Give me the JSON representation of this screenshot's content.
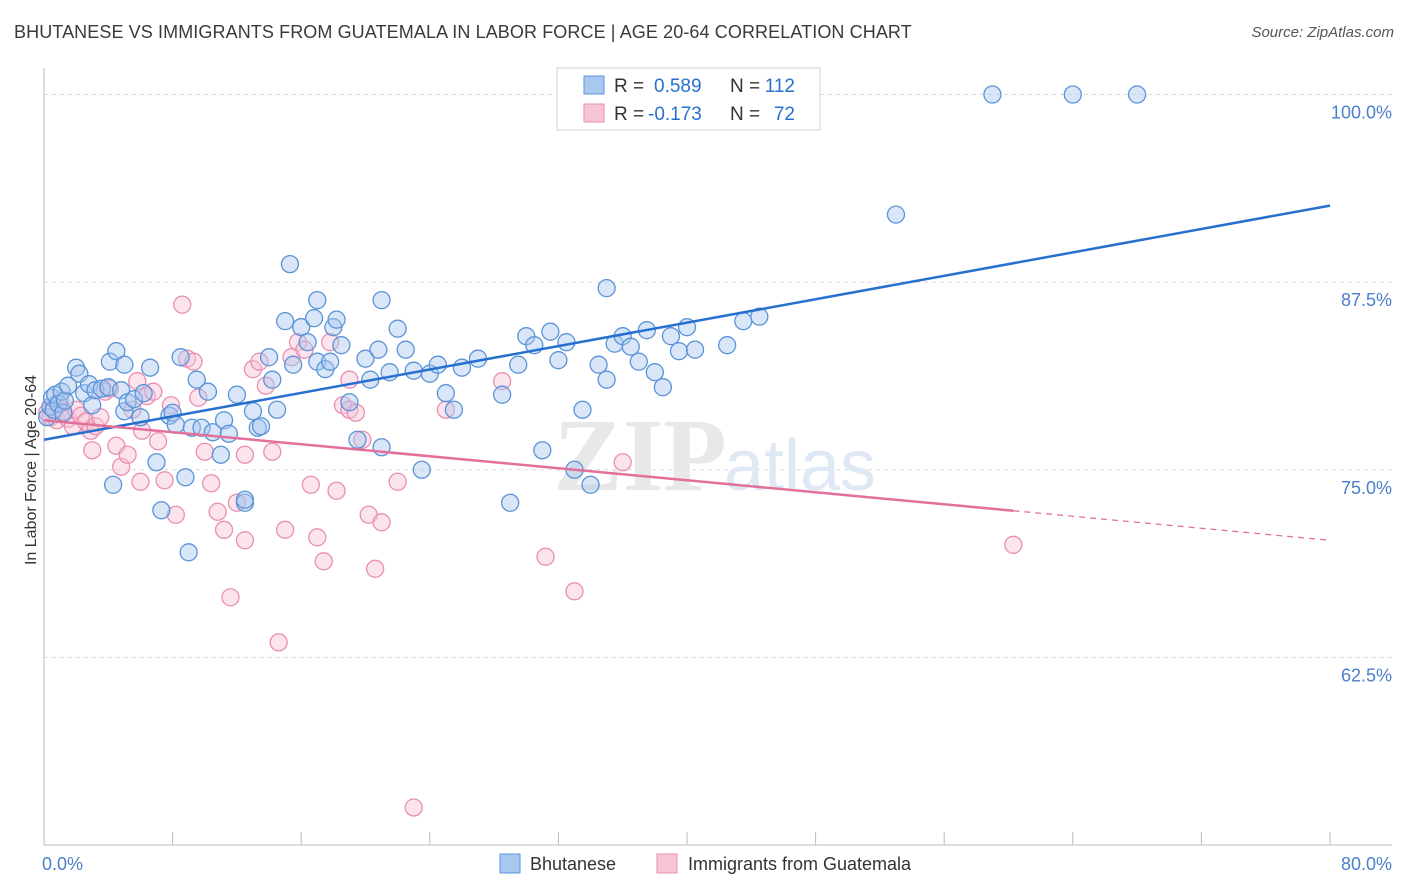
{
  "header": {
    "title": "BHUTANESE VS IMMIGRANTS FROM GUATEMALA IN LABOR FORCE | AGE 20-64 CORRELATION CHART",
    "source": "Source: ZipAtlas.com"
  },
  "watermark": {
    "zip": "ZIP",
    "atlas": "atlas"
  },
  "colors": {
    "blue": "#5b93d8",
    "blue_fill": "#a9c8ef",
    "blue_line": "#2770cf",
    "pink": "#ea8fb0",
    "pink_fill": "#f6c4d6",
    "pink_line": "#e2709a",
    "axis_text": "#4a7fcc",
    "grid": "#d9d9d9"
  },
  "chart_data": {
    "type": "scatter",
    "title": "BHUTANESE VS IMMIGRANTS FROM GUATEMALA IN LABOR FORCE | AGE 20-64 CORRELATION CHART",
    "xlabel": "",
    "ylabel": "In Labor Force | Age 20-64",
    "xlim": [
      0,
      80
    ],
    "ylim": [
      50,
      101.5
    ],
    "x_tick_labels": {
      "min": "0.0%",
      "max": "80.0%"
    },
    "y_ticks": [
      {
        "value": 62.5,
        "label": "62.5%"
      },
      {
        "value": 75.0,
        "label": "75.0%"
      },
      {
        "value": 87.5,
        "label": "87.5%"
      },
      {
        "value": 100.0,
        "label": "100.0%"
      }
    ],
    "legend": {
      "position": "top-center",
      "rows": [
        {
          "r_label": "R =",
          "r_value": "0.589",
          "n_label": "N =",
          "n_value": "112"
        },
        {
          "r_label": "R =",
          "r_value": "-0.173",
          "n_label": "N =",
          "n_value": "72"
        }
      ]
    },
    "series": [
      {
        "name": "Bhutanese",
        "color": "#5b93d8",
        "trend": {
          "x0": 0,
          "y0": 77.0,
          "x1": 80,
          "y1": 92.6,
          "dashed_from": null
        },
        "points": [
          [
            0.2,
            78.5
          ],
          [
            0.4,
            79.2
          ],
          [
            0.5,
            79.8
          ],
          [
            0.6,
            79.0
          ],
          [
            0.7,
            80.0
          ],
          [
            0.9,
            79.4
          ],
          [
            1.1,
            80.2
          ],
          [
            1.2,
            78.8
          ],
          [
            1.3,
            79.6
          ],
          [
            1.5,
            80.6
          ],
          [
            2.0,
            81.8
          ],
          [
            2.2,
            81.4
          ],
          [
            2.5,
            80.1
          ],
          [
            2.8,
            80.7
          ],
          [
            3.0,
            79.3
          ],
          [
            3.2,
            80.3
          ],
          [
            3.6,
            80.4
          ],
          [
            4.0,
            80.5
          ],
          [
            4.1,
            82.2
          ],
          [
            4.5,
            82.9
          ],
          [
            4.8,
            80.3
          ],
          [
            5.0,
            78.9
          ],
          [
            5.2,
            79.5
          ],
          [
            5.6,
            79.7
          ],
          [
            6.0,
            78.5
          ],
          [
            6.2,
            80.1
          ],
          [
            6.6,
            81.8
          ],
          [
            7.0,
            75.5
          ],
          [
            7.3,
            72.3
          ],
          [
            7.8,
            78.6
          ],
          [
            8.0,
            78.8
          ],
          [
            8.2,
            78.0
          ],
          [
            8.5,
            82.5
          ],
          [
            8.8,
            74.5
          ],
          [
            9.2,
            77.8
          ],
          [
            9.5,
            81.0
          ],
          [
            9.8,
            77.8
          ],
          [
            10.2,
            80.2
          ],
          [
            10.5,
            77.5
          ],
          [
            11.0,
            76.0
          ],
          [
            11.2,
            78.3
          ],
          [
            11.5,
            77.4
          ],
          [
            12.0,
            80.0
          ],
          [
            12.5,
            72.8
          ],
          [
            13.0,
            78.9
          ],
          [
            13.3,
            77.8
          ],
          [
            13.5,
            77.9
          ],
          [
            14.0,
            82.5
          ],
          [
            14.2,
            81.0
          ],
          [
            14.5,
            79.0
          ],
          [
            15.0,
            84.9
          ],
          [
            15.5,
            82.0
          ],
          [
            16.0,
            84.5
          ],
          [
            16.4,
            83.5
          ],
          [
            16.8,
            85.1
          ],
          [
            17.0,
            82.2
          ],
          [
            17.5,
            81.7
          ],
          [
            17.8,
            82.2
          ],
          [
            18.0,
            84.5
          ],
          [
            18.2,
            85.0
          ],
          [
            18.5,
            83.3
          ],
          [
            19.0,
            79.5
          ],
          [
            19.5,
            77.0
          ],
          [
            20.0,
            82.4
          ],
          [
            20.3,
            81.0
          ],
          [
            20.8,
            83.0
          ],
          [
            21.0,
            76.5
          ],
          [
            21.5,
            81.5
          ],
          [
            22.0,
            84.4
          ],
          [
            22.5,
            83.0
          ],
          [
            23.0,
            81.6
          ],
          [
            23.5,
            75.0
          ],
          [
            24.0,
            81.4
          ],
          [
            24.5,
            82.0
          ],
          [
            25.0,
            80.1
          ],
          [
            25.5,
            79.0
          ],
          [
            26.0,
            81.8
          ],
          [
            27.0,
            82.4
          ],
          [
            28.5,
            80.0
          ],
          [
            29.0,
            72.8
          ],
          [
            29.5,
            82.0
          ],
          [
            30.0,
            83.9
          ],
          [
            30.5,
            83.3
          ],
          [
            31.0,
            76.3
          ],
          [
            31.5,
            84.2
          ],
          [
            32.0,
            82.3
          ],
          [
            32.5,
            83.5
          ],
          [
            33.0,
            75.0
          ],
          [
            33.5,
            79.0
          ],
          [
            34.0,
            74.0
          ],
          [
            34.5,
            82.0
          ],
          [
            35.0,
            81.0
          ],
          [
            35.5,
            83.4
          ],
          [
            36.0,
            83.9
          ],
          [
            36.5,
            83.2
          ],
          [
            37.0,
            82.2
          ],
          [
            37.5,
            84.3
          ],
          [
            38.0,
            81.5
          ],
          [
            38.5,
            80.5
          ],
          [
            39.0,
            83.9
          ],
          [
            39.5,
            82.9
          ],
          [
            40.0,
            84.5
          ],
          [
            40.5,
            83.0
          ],
          [
            42.5,
            83.3
          ],
          [
            43.5,
            84.9
          ],
          [
            44.5,
            85.2
          ],
          [
            35.0,
            87.1
          ],
          [
            15.3,
            88.7
          ],
          [
            21.0,
            86.3
          ],
          [
            53.0,
            92.0
          ],
          [
            59.0,
            100.0
          ],
          [
            64.0,
            100.0
          ],
          [
            68.0,
            100.0
          ],
          [
            9.0,
            69.5
          ],
          [
            5.0,
            82.0
          ],
          [
            17.0,
            86.3
          ],
          [
            4.3,
            74.0
          ],
          [
            12.5,
            73.0
          ]
        ]
      },
      {
        "name": "Immigrants from Guatemala",
        "color": "#ea8fb0",
        "trend": {
          "x0": 0,
          "y0": 78.3,
          "x1": 80,
          "y1": 70.3,
          "dashed_from": 60.3
        },
        "points": [
          [
            0.2,
            78.8
          ],
          [
            0.4,
            78.5
          ],
          [
            0.6,
            79.2
          ],
          [
            0.8,
            78.3
          ],
          [
            1.0,
            79.6
          ],
          [
            1.2,
            78.9
          ],
          [
            1.5,
            78.4
          ],
          [
            1.8,
            77.9
          ],
          [
            2.0,
            79.0
          ],
          [
            2.3,
            78.6
          ],
          [
            2.6,
            78.2
          ],
          [
            2.9,
            77.6
          ],
          [
            3.2,
            77.9
          ],
          [
            3.5,
            78.5
          ],
          [
            3.8,
            80.2
          ],
          [
            4.1,
            80.4
          ],
          [
            4.5,
            76.6
          ],
          [
            4.8,
            75.2
          ],
          [
            5.2,
            76.0
          ],
          [
            5.5,
            79.0
          ],
          [
            5.8,
            80.9
          ],
          [
            6.1,
            77.6
          ],
          [
            6.4,
            79.9
          ],
          [
            6.8,
            80.2
          ],
          [
            7.1,
            76.9
          ],
          [
            7.5,
            74.3
          ],
          [
            7.9,
            79.3
          ],
          [
            8.2,
            72.0
          ],
          [
            8.6,
            86.0
          ],
          [
            8.9,
            82.4
          ],
          [
            9.3,
            82.2
          ],
          [
            9.6,
            79.8
          ],
          [
            10.0,
            76.2
          ],
          [
            10.4,
            74.1
          ],
          [
            10.8,
            72.2
          ],
          [
            11.2,
            71.0
          ],
          [
            11.6,
            66.5
          ],
          [
            12.0,
            72.8
          ],
          [
            12.5,
            70.3
          ],
          [
            13.0,
            81.7
          ],
          [
            13.4,
            82.2
          ],
          [
            13.8,
            80.6
          ],
          [
            14.2,
            76.2
          ],
          [
            14.6,
            63.5
          ],
          [
            15.0,
            71.0
          ],
          [
            15.4,
            82.5
          ],
          [
            15.8,
            83.5
          ],
          [
            16.2,
            83.0
          ],
          [
            16.6,
            74.0
          ],
          [
            17.0,
            70.5
          ],
          [
            17.4,
            68.9
          ],
          [
            17.8,
            83.5
          ],
          [
            18.2,
            73.6
          ],
          [
            18.6,
            79.3
          ],
          [
            19.0,
            79.0
          ],
          [
            19.4,
            78.8
          ],
          [
            19.8,
            77.0
          ],
          [
            20.2,
            72.0
          ],
          [
            20.6,
            68.4
          ],
          [
            21.0,
            71.5
          ],
          [
            22.0,
            74.2
          ],
          [
            23.0,
            52.5
          ],
          [
            25.0,
            79.0
          ],
          [
            28.5,
            80.9
          ],
          [
            31.2,
            69.2
          ],
          [
            33.0,
            66.9
          ],
          [
            36.0,
            75.5
          ],
          [
            60.3,
            70.0
          ],
          [
            12.5,
            76.0
          ],
          [
            6.0,
            74.2
          ],
          [
            3.0,
            76.3
          ],
          [
            19.0,
            81.0
          ]
        ]
      }
    ]
  }
}
